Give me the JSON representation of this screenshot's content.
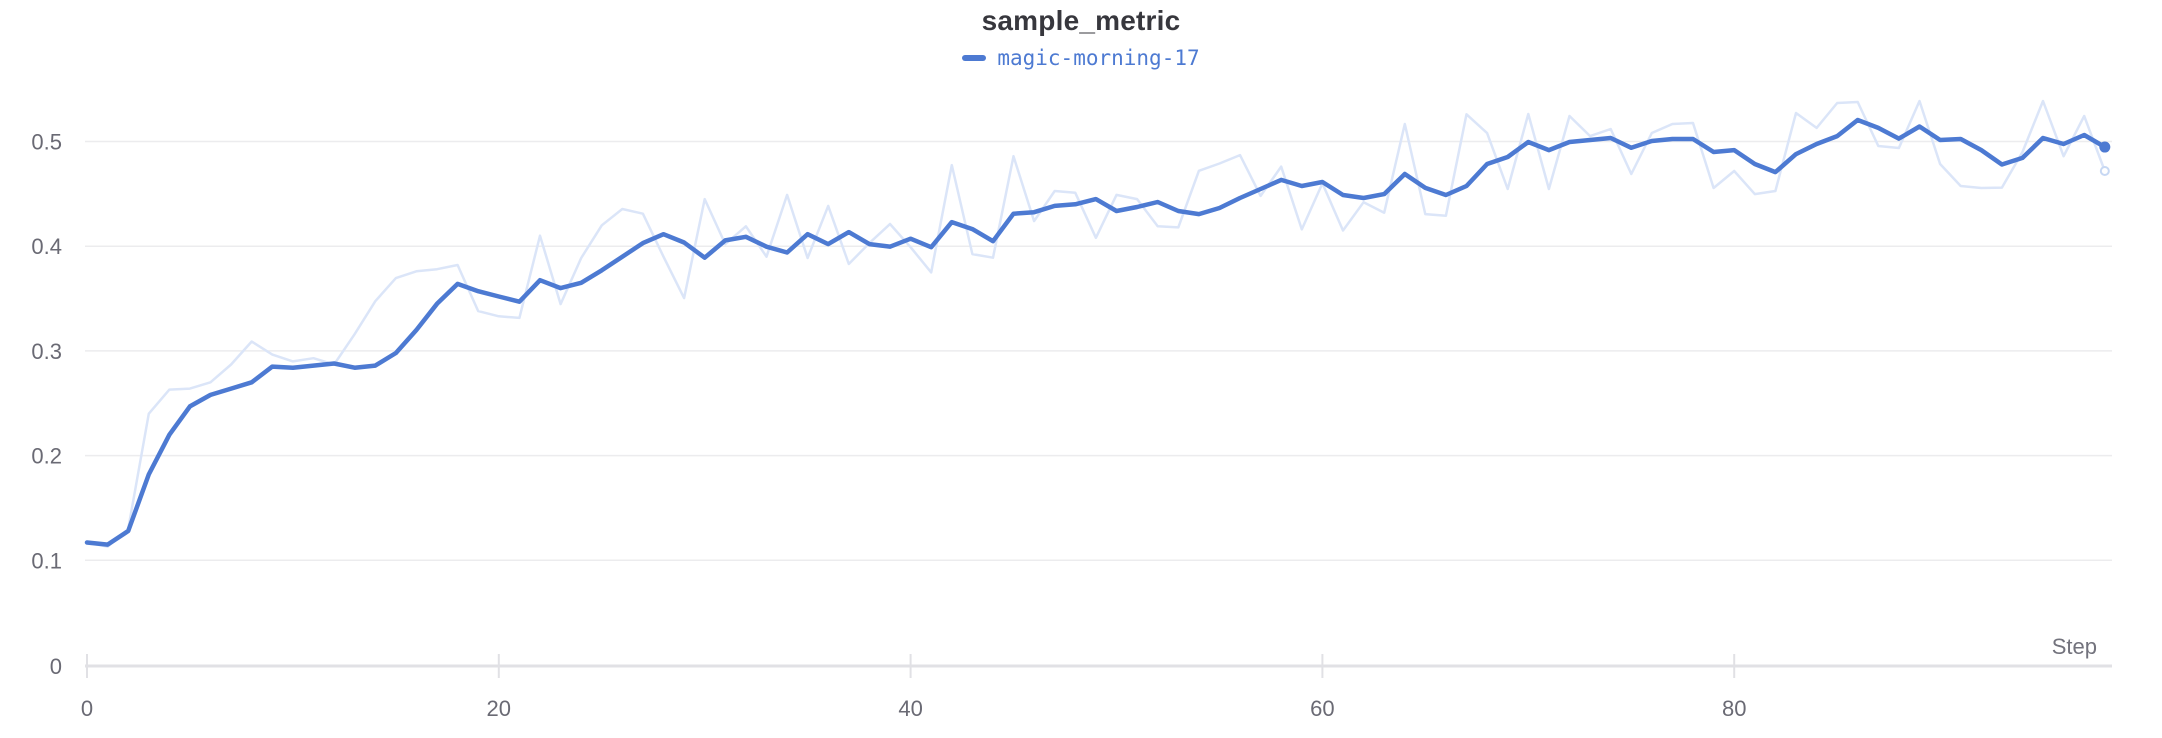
{
  "header": {
    "title": "sample_metric",
    "legend": {
      "label": "magic-morning-17",
      "swatch_color": "#4d7ad2"
    }
  },
  "colors": {
    "accent_blue": "#4d7ad2",
    "raw_blue": "#dbe5f8",
    "gridline": "#ececee",
    "axis_line": "#e1e1e5",
    "tick_text": "#6a6a74",
    "axis_title_text": "#73737d",
    "background": "#ffffff"
  },
  "chart_data": {
    "type": "line",
    "title": "sample_metric",
    "xlabel": "Step",
    "ylabel": "",
    "legend_entries": [
      "magic-morning-17"
    ],
    "legend_position": "top-center",
    "grid": "horizontal",
    "xlim": [
      0,
      98.5
    ],
    "ylim": [
      0,
      0.56
    ],
    "x_start": 0,
    "x_step_size": 1,
    "x_ticks": [
      {
        "value": 0,
        "label": "0"
      },
      {
        "value": 20,
        "label": "20"
      },
      {
        "value": 40,
        "label": "40"
      },
      {
        "value": 60,
        "label": "60"
      },
      {
        "value": 80,
        "label": "80"
      }
    ],
    "y_ticks": [
      {
        "value": 0,
        "label": "0"
      },
      {
        "value": 0.1,
        "label": "0.1"
      },
      {
        "value": 0.2,
        "label": "0.2"
      },
      {
        "value": 0.3,
        "label": "0.3"
      },
      {
        "value": 0.4,
        "label": "0.4"
      },
      {
        "value": 0.5,
        "label": "0.5"
      }
    ],
    "series": [
      {
        "name": "magic-morning-17",
        "role": "smoothed",
        "color": "#4d7ad2",
        "stroke_width": 4.5,
        "end_marker": "dot",
        "marker_color": "#4d7ad2",
        "values": [
          0.117,
          0.115,
          0.128,
          0.182,
          0.22,
          0.247,
          0.258,
          0.264,
          0.27,
          0.285,
          0.284,
          0.286,
          0.288,
          0.284,
          0.286,
          0.298,
          0.32,
          0.345,
          0.364,
          0.357,
          0.352,
          0.347,
          0.3675,
          0.36,
          0.365,
          0.377,
          0.39,
          0.403,
          0.4115,
          0.4035,
          0.389,
          0.4055,
          0.409,
          0.3995,
          0.394,
          0.4115,
          0.402,
          0.4135,
          0.402,
          0.3995,
          0.4072,
          0.399,
          0.423,
          0.4163,
          0.4048,
          0.431,
          0.4325,
          0.4385,
          0.44,
          0.445,
          0.4336,
          0.4374,
          0.4422,
          0.4336,
          0.4307,
          0.4365,
          0.446,
          0.4546,
          0.4633,
          0.4575,
          0.4613,
          0.4489,
          0.446,
          0.4498,
          0.469,
          0.4557,
          0.4489,
          0.4575,
          0.4785,
          0.4852,
          0.4995,
          0.4918,
          0.4995,
          0.5014,
          0.5033,
          0.494,
          0.5005,
          0.5024,
          0.5024,
          0.49,
          0.4918,
          0.4785,
          0.4708,
          0.488,
          0.4976,
          0.5052,
          0.5205,
          0.513,
          0.5028,
          0.5143,
          0.5014,
          0.5024,
          0.4918,
          0.478,
          0.4843,
          0.5033,
          0.4976,
          0.5062,
          0.4947
        ]
      },
      {
        "name": "magic-morning-17 (raw)",
        "role": "raw",
        "color": "#dbe5f8",
        "stroke_width": 2.5,
        "end_marker": "ring",
        "marker_color": "#c7d8f3",
        "values": [
          0.117,
          0.113,
          0.13,
          0.24,
          0.263,
          0.264,
          0.27,
          0.287,
          0.309,
          0.2965,
          0.29,
          0.293,
          0.287,
          0.316,
          0.3475,
          0.3695,
          0.376,
          0.378,
          0.382,
          0.338,
          0.333,
          0.3315,
          0.41,
          0.3447,
          0.3887,
          0.42,
          0.4355,
          0.431,
          0.39,
          0.3504,
          0.445,
          0.402,
          0.419,
          0.39,
          0.449,
          0.3887,
          0.4385,
          0.383,
          0.403,
          0.4212,
          0.399,
          0.375,
          0.4775,
          0.3925,
          0.389,
          0.486,
          0.424,
          0.4527,
          0.451,
          0.408,
          0.449,
          0.445,
          0.419,
          0.418,
          0.472,
          0.479,
          0.487,
          0.448,
          0.476,
          0.416,
          0.46,
          0.415,
          0.442,
          0.432,
          0.5167,
          0.4307,
          0.429,
          0.526,
          0.508,
          0.4546,
          0.5263,
          0.4546,
          0.5244,
          0.5052,
          0.5119,
          0.469,
          0.5081,
          0.5167,
          0.5177,
          0.4556,
          0.4718,
          0.4498,
          0.4527,
          0.5272,
          0.513,
          0.5368,
          0.5377,
          0.4957,
          0.4938,
          0.5387,
          0.4785,
          0.4575,
          0.4556,
          0.456,
          0.49,
          0.5387,
          0.486,
          0.5244,
          0.4718
        ]
      }
    ]
  }
}
